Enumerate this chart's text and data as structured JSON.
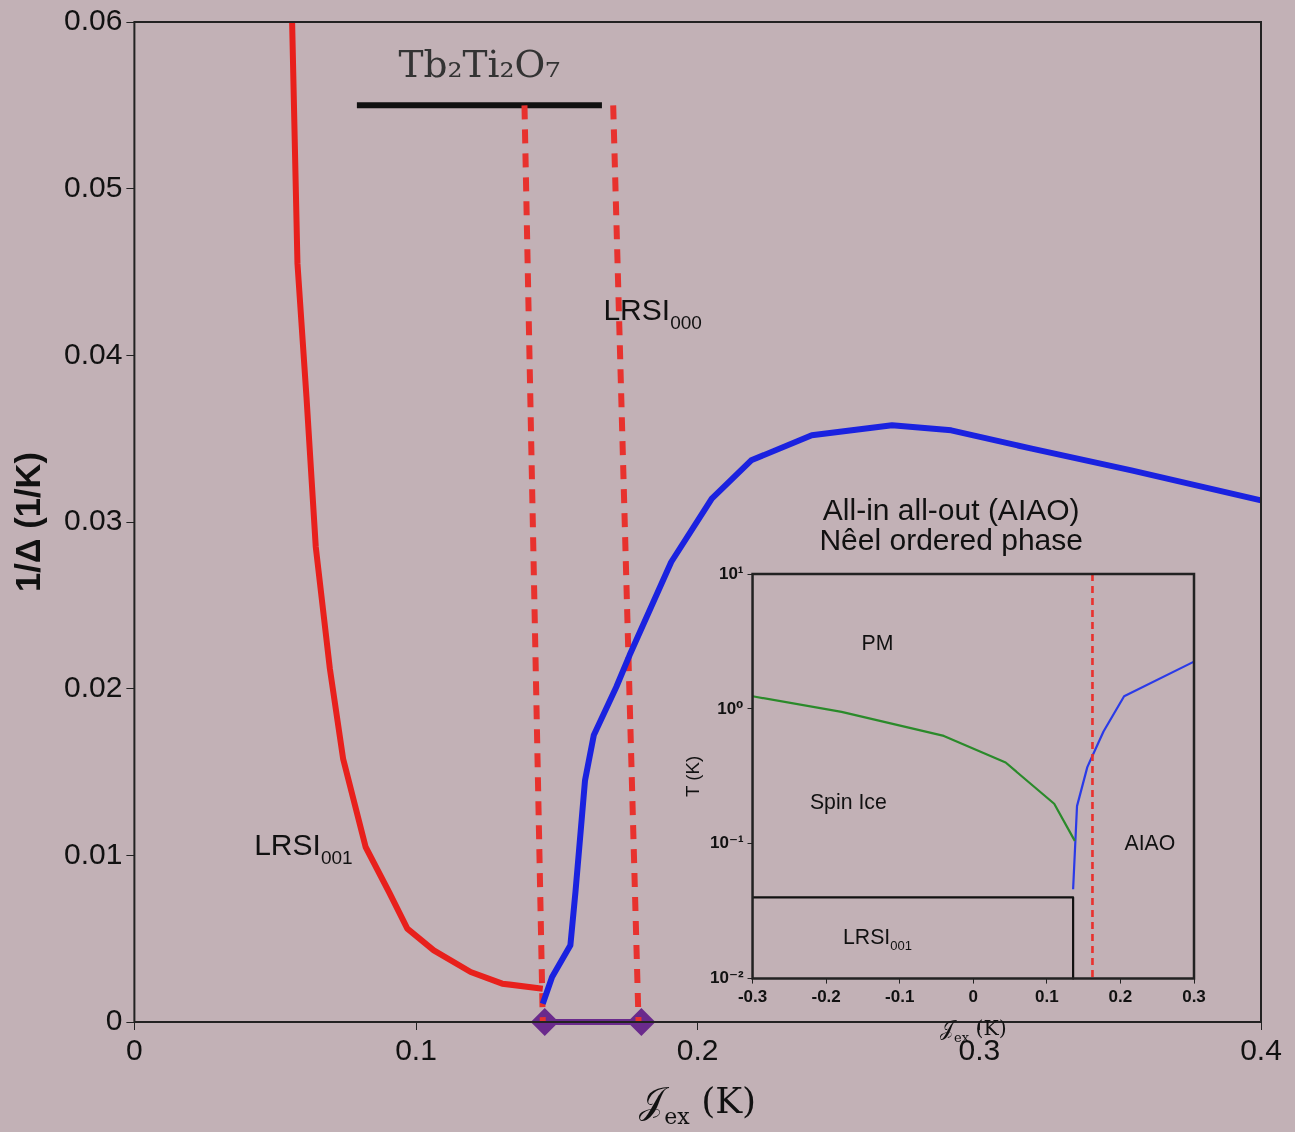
{
  "chart_data": [
    {
      "type": "line",
      "xlabel": "𝒥$_{ex}$ (K)",
      "ylabel": "1/Δ (1/K)",
      "xlim": [
        0,
        0.4
      ],
      "xticks": [
        0,
        0.1,
        0.2,
        0.3,
        0.4
      ],
      "ylim": [
        0,
        0.06
      ],
      "yticks": [
        0,
        0.01,
        0.02,
        0.03,
        0.04,
        0.05,
        0.06
      ],
      "series": [
        {
          "color": "#e8201c",
          "x": [
            0.056,
            0.0579,
            0.0611,
            0.0644,
            0.0694,
            0.0741,
            0.0821,
            0.0904,
            0.0969,
            0.1063,
            0.1194,
            0.1306,
            0.145
          ],
          "values": [
            0.06,
            0.0455,
            0.0375,
            0.0285,
            0.0212,
            0.0158,
            0.0105,
            0.0078,
            0.0056,
            0.0043,
            0.003,
            0.0023,
            0.002
          ]
        },
        {
          "color": "#1a22e0",
          "x": [
            0.145,
            0.1483,
            0.1548,
            0.1566,
            0.16,
            0.1631,
            0.1711,
            0.1758,
            0.1906,
            0.205,
            0.219,
            0.2405,
            0.269,
            0.29,
            0.3186,
            0.354,
            0.4
          ],
          "values": [
            0.0011,
            0.0027,
            0.0046,
            0.0078,
            0.0145,
            0.0172,
            0.0201,
            0.022,
            0.0276,
            0.0314,
            0.0337,
            0.0352,
            0.0358,
            0.0355,
            0.0344,
            0.0331,
            0.0313
          ]
        },
        {
          "color": "#e8322e",
          "line_style": "dashed",
          "x": [
            0.1385,
            0.145
          ],
          "values": [
            0.055,
            0
          ]
        },
        {
          "color": "#e8322e",
          "line_style": "dashed",
          "x": [
            0.17,
            0.179
          ],
          "values": [
            0.055,
            0
          ]
        },
        {
          "type": "line",
          "name": "Tb₂Ti₂O₇",
          "color": "#111111",
          "x": [
            0.079,
            0.166
          ],
          "values": [
            0.055,
            0.055
          ]
        },
        {
          "color": "#6a2a8c",
          "marker": "diamond",
          "x": [
            0.1457,
            0.18
          ],
          "values": [
            0,
            0
          ]
        }
      ],
      "annotations": [
        "LRSI$_{001}$",
        "LRSI$_{000}$",
        "All-in all-out (AIAO)",
        "Nêel ordered phase"
      ]
    },
    {
      "type": "line",
      "xlabel": "𝒥$_{ex}$ (K)",
      "ylabel": "T (K)",
      "xlim": [
        -0.3,
        0.3
      ],
      "xticks": [
        -0.3,
        -0.2,
        -0.1,
        0,
        0.1,
        0.2,
        0.3
      ],
      "ylim": [
        0.01,
        10
      ],
      "log": "y",
      "yticks": [
        {
          "value": 0.01,
          "label": "10⁻²"
        },
        {
          "value": 0.1,
          "label": "10⁻¹"
        },
        {
          "value": 1,
          "label": "10⁰"
        },
        {
          "value": 10,
          "label": "10¹"
        }
      ],
      "series": [
        {
          "color": "#2a8a2a",
          "x": [
            -0.3,
            -0.179,
            -0.04,
            0.044,
            0.11,
            0.138
          ],
          "values": [
            1.24,
            0.95,
            0.63,
            0.4,
            0.198,
            0.105
          ]
        },
        {
          "color": "#2a3ae8",
          "x": [
            0.1357,
            0.141,
            0.155,
            0.177,
            0.205,
            0.3
          ],
          "values": [
            0.046,
            0.19,
            0.37,
            0.68,
            1.24,
            2.24
          ]
        },
        {
          "color": "#111111",
          "x": [
            -0.3,
            0.1357,
            0.1357
          ],
          "values": [
            0.04,
            0.04,
            0.01
          ]
        }
      ],
      "ref_lines": [
        {
          "axis": "x",
          "value": 0.162,
          "color": "#e8322e",
          "line_style": "dashed"
        }
      ],
      "annotations": [
        "PM",
        "Spin Ice",
        "AIAO",
        "LRSI$_{001}$"
      ]
    }
  ]
}
